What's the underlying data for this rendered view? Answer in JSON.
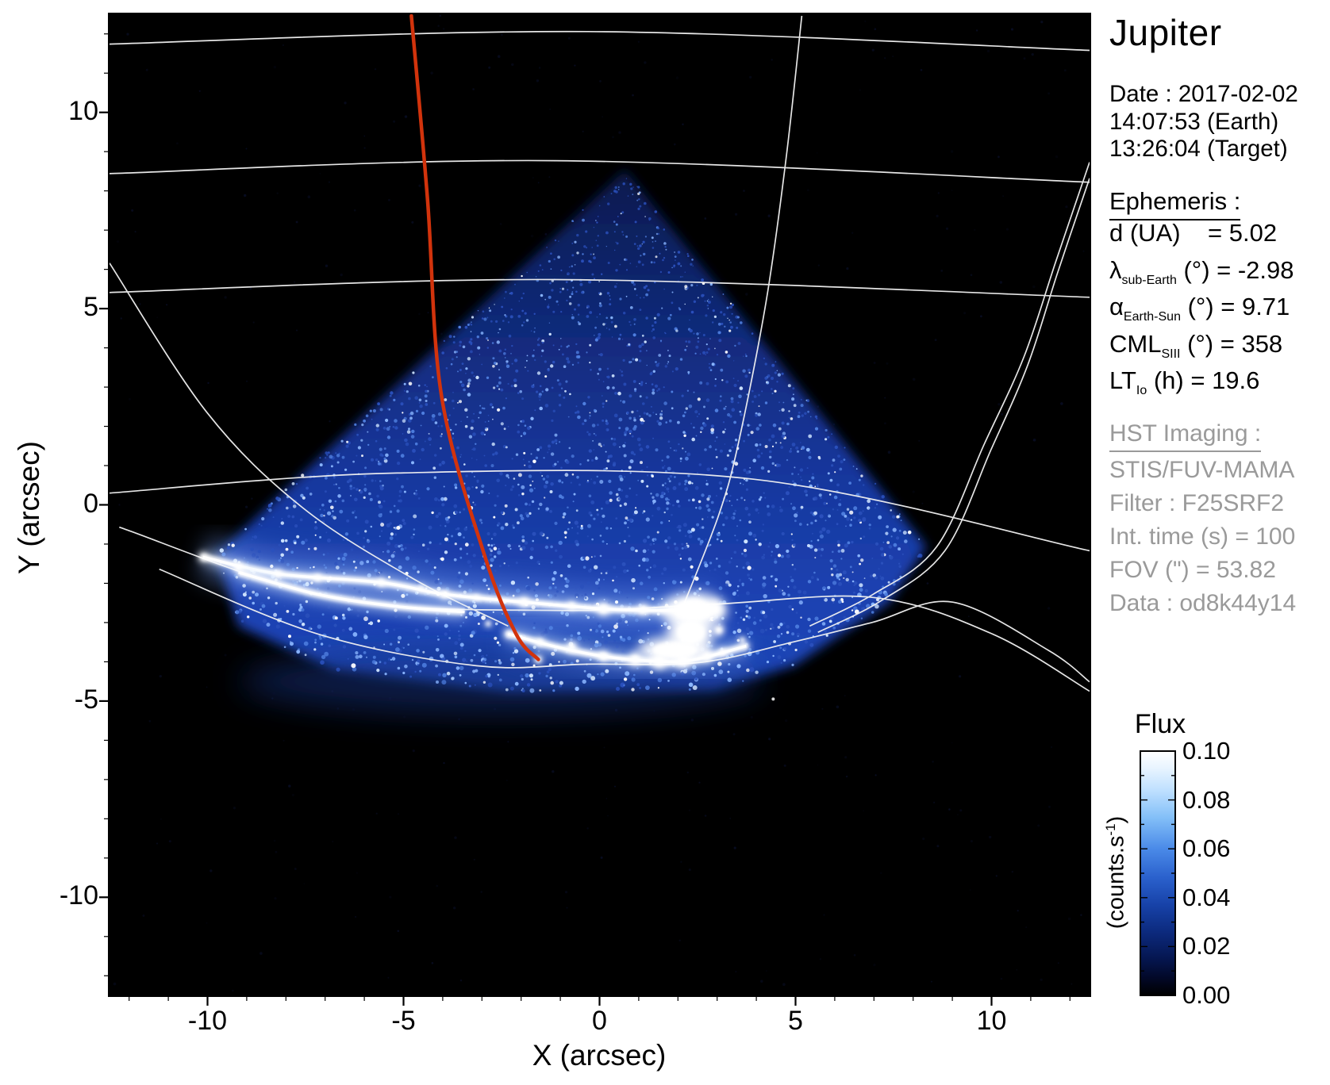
{
  "title": "Jupiter",
  "info_panel": {
    "date_lines": [
      "Date : 2017-02-02",
      "14:07:53 (Earth)",
      "13:26:04 (Target)"
    ],
    "ephemeris": {
      "header": "Ephemeris :",
      "rows": [
        {
          "lead": "d (UA)",
          "sub": "",
          "tail": "    = 5.02"
        },
        {
          "lead": "λ",
          "sub": "sub-Earth",
          "tail": " (°) = -2.98"
        },
        {
          "lead": "α",
          "sub": "Earth-Sun",
          "tail": " (°) = 9.71"
        },
        {
          "lead": "CML",
          "sub": "SIII",
          "tail": " (°) = 358"
        },
        {
          "lead": "LT",
          "sub": "Io",
          "tail": " (h) = 19.6"
        }
      ]
    },
    "hst": {
      "header": "HST Imaging :",
      "rows": [
        "STIS/FUV-MAMA",
        "Filter : F25SRF2",
        "Int. time (s) = 100",
        "FOV (\") = 53.82",
        "Data : od8k44y14"
      ]
    }
  },
  "chart_data": {
    "type": "heatmap",
    "title": "Jupiter",
    "xlabel": "X (arcsec)",
    "ylabel": "Y (arcsec)",
    "xlim": [
      -12.5,
      12.5
    ],
    "ylim": [
      -12.5,
      12.5
    ],
    "xticks": [
      -10,
      -5,
      0,
      5,
      10
    ],
    "yticks": [
      10,
      5,
      0,
      -5,
      -10
    ],
    "minor_tick_step": 1,
    "grid": false,
    "background": "#000000",
    "colorbar": {
      "title": "Flux",
      "unit": {
        "pre": "(counts.s",
        "sup": "-1",
        "post": ")"
      },
      "ticks": [
        "0.10",
        "0.08",
        "0.06",
        "0.04",
        "0.02",
        "0.00"
      ],
      "range": [
        0.0,
        0.1
      ],
      "stops": [
        [
          "#ffffff",
          0
        ],
        [
          "#e8f4ff",
          0.07
        ],
        [
          "#bfe0ff",
          0.16
        ],
        [
          "#84c0f8",
          0.27
        ],
        [
          "#4a8ae8",
          0.4
        ],
        [
          "#2a60cc",
          0.52
        ],
        [
          "#1742a8",
          0.63
        ],
        [
          "#0c2a7e",
          0.74
        ],
        [
          "#051650",
          0.85
        ],
        [
          "#020827",
          0.93
        ],
        [
          "#000000",
          1
        ]
      ]
    },
    "features": {
      "cone_outline": [
        [
          0.65,
          8.53
        ],
        [
          -9.76,
          -1.27
        ],
        [
          -9.21,
          -3.09
        ],
        [
          -6.78,
          -4.2
        ],
        [
          -2.33,
          -4.75
        ],
        [
          2.94,
          -4.71
        ],
        [
          4.96,
          -4.1
        ],
        [
          7.39,
          -2.48
        ],
        [
          8.34,
          -1.07
        ]
      ],
      "under_glow": {
        "cx": -2.5,
        "cy": -4.5,
        "rx": 6.7,
        "ry": 0.85
      },
      "graticule_parallels": [
        [
          [
            -12.5,
            11.74
          ],
          [
            -0.3,
            12.06
          ],
          [
            12.5,
            11.58
          ]
        ],
        [
          [
            -12.5,
            8.44
          ],
          [
            -1.11,
            8.77
          ],
          [
            12.5,
            8.22
          ]
        ],
        [
          [
            -12.5,
            5.41
          ],
          [
            -1.11,
            5.74
          ],
          [
            12.5,
            5.29
          ]
        ],
        [
          [
            -12.5,
            0.3
          ],
          [
            -5.16,
            0.81
          ],
          [
            3.95,
            0.65
          ],
          [
            12.5,
            -1.17
          ]
        ],
        [
          [
            -12.25,
            -0.57
          ],
          [
            -6.78,
            -2.38
          ],
          [
            -1.11,
            -2.69
          ],
          [
            2.94,
            -2.53
          ],
          [
            6.98,
            -2.36
          ],
          [
            10.02,
            -3.29
          ],
          [
            12.5,
            -4.75
          ]
        ],
        [
          [
            -11.23,
            -1.64
          ],
          [
            -7.19,
            -3.29
          ],
          [
            -3.14,
            -4.1
          ],
          [
            -0.3,
            -4.06
          ],
          [
            2.53,
            -4.02
          ],
          [
            4.96,
            -3.49
          ],
          [
            6.98,
            -2.99
          ],
          [
            9.01,
            -2.48
          ],
          [
            11.44,
            -3.7
          ],
          [
            12.5,
            -4.51
          ]
        ]
      ],
      "graticule_meridians": [
        [
          [
            -12.5,
            6.16
          ],
          [
            -10.02,
            2.36
          ],
          [
            -7.59,
            -0.06
          ],
          [
            -4.76,
            -1.88
          ],
          [
            -2.33,
            -3.09
          ]
        ],
        [
          [
            5.16,
            12.46
          ],
          [
            4.76,
            8.83
          ],
          [
            4.25,
            5.19
          ],
          [
            3.54,
            1.56
          ],
          [
            3.04,
            -0.26
          ],
          [
            2.13,
            -2.59
          ]
        ],
        [
          [
            12.5,
            8.73
          ],
          [
            11.64,
            6.2
          ],
          [
            10.83,
            3.78
          ],
          [
            9.82,
            1.56
          ],
          [
            8.6,
            -1.07
          ],
          [
            6.98,
            -2.28
          ],
          [
            5.36,
            -3.09
          ]
        ],
        [
          [
            12.5,
            8.32
          ],
          [
            11.68,
            5.9
          ],
          [
            10.93,
            3.58
          ],
          [
            9.98,
            1.39
          ],
          [
            8.81,
            -1.17
          ],
          [
            7.19,
            -2.44
          ],
          [
            5.57,
            -3.25
          ]
        ]
      ],
      "red_meridian": [
        [
          -4.8,
          12.46
        ],
        [
          -4.39,
          7.82
        ],
        [
          -4.03,
          2.77
        ],
        [
          -2.94,
          -1.27
        ],
        [
          -2.13,
          -3.29
        ],
        [
          -1.56,
          -3.94
        ]
      ],
      "aurora": {
        "main_arc": [
          [
            -10.12,
            -1.33
          ],
          [
            -8.2,
            -1.76
          ],
          [
            -5.57,
            -1.98
          ],
          [
            -3.95,
            -2.28
          ],
          [
            -1.92,
            -2.48
          ],
          [
            0.1,
            -2.65
          ],
          [
            1.52,
            -2.69
          ],
          [
            2.94,
            -2.65
          ]
        ],
        "lower_arc": [
          [
            -2.33,
            -3.29
          ],
          [
            -1.11,
            -3.62
          ],
          [
            0.1,
            -3.86
          ],
          [
            1.32,
            -3.98
          ],
          [
            2.33,
            -3.96
          ],
          [
            3.74,
            -3.6
          ]
        ],
        "inner_arc": [
          [
            -9.21,
            -1.72
          ],
          [
            -7.19,
            -2.28
          ],
          [
            -5.16,
            -2.59
          ],
          [
            -3.44,
            -2.73
          ]
        ],
        "blobs": [
          {
            "cx": 2.41,
            "cy": -2.69,
            "rx": 0.85,
            "ry": 0.45
          },
          {
            "cx": 1.92,
            "cy": -3.7,
            "rx": 0.95,
            "ry": 0.35
          },
          {
            "cx": 2.33,
            "cy": -3.25,
            "rx": 0.6,
            "ry": 0.5
          }
        ],
        "knots": [
          [
            -10.12,
            -1.33,
            4
          ],
          [
            -9.21,
            -1.6,
            5
          ],
          [
            -8.2,
            -1.76,
            4
          ],
          [
            -7.19,
            -1.86,
            4
          ],
          [
            -5.57,
            -1.98,
            4
          ],
          [
            -4.55,
            -2.12,
            3
          ],
          [
            -3.95,
            -2.28,
            4
          ],
          [
            -3.14,
            -2.36,
            3
          ],
          [
            -1.92,
            -2.48,
            5
          ],
          [
            -0.71,
            -2.57,
            4
          ],
          [
            0.1,
            -2.65,
            6
          ],
          [
            1.11,
            -2.67,
            5
          ],
          [
            2.13,
            -2.67,
            7
          ],
          [
            2.94,
            -2.65,
            7
          ],
          [
            2.41,
            -2.65,
            9
          ],
          [
            -2.33,
            -3.29,
            4
          ],
          [
            -1.52,
            -3.5,
            4
          ],
          [
            -0.71,
            -3.62,
            5
          ],
          [
            0.1,
            -3.86,
            5
          ],
          [
            0.91,
            -3.94,
            6
          ],
          [
            1.52,
            -3.98,
            7
          ],
          [
            2.13,
            -3.96,
            7
          ],
          [
            2.74,
            -3.86,
            5
          ],
          [
            3.14,
            -3.76,
            4
          ],
          [
            3.74,
            -3.6,
            3
          ],
          [
            3.04,
            -3.19,
            5
          ],
          [
            3.64,
            -3.45,
            3
          ],
          [
            -1.56,
            -3.94,
            4
          ],
          [
            -2.84,
            -3.03,
            3
          ]
        ],
        "spark": [
          4.43,
          -4.95,
          2
        ]
      }
    }
  },
  "colors": {
    "plot_background": "#000000",
    "frame": "#000000",
    "graticule": "#f2f2f2",
    "red_line": "#d2330c",
    "aurora": "#ffffff",
    "text": "#000000",
    "gray_text": "#9a9a9a",
    "cone_stops": [
      [
        "#0a1a4e",
        0
      ],
      [
        "#122c80",
        0.35
      ],
      [
        "#17379e",
        0.6
      ],
      [
        "#1b41b0",
        0.8
      ],
      [
        "#1d46b8",
        1
      ]
    ]
  }
}
